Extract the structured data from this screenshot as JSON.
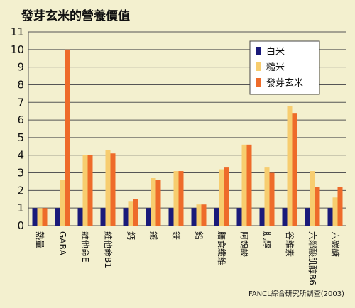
{
  "title": "發芽玄米的營養價值",
  "source": "FANCL綜合研究所調查(2003)",
  "colors": {
    "background": "#f3f0cf",
    "white_rice": "#1a1a7a",
    "brown_rice": "#f7cd6f",
    "germinated": "#ee6b2a",
    "grid": "#555555"
  },
  "chart_data": {
    "type": "bar",
    "title": "發芽玄米的營養價值",
    "xlabel": "",
    "ylabel": "",
    "ylim": [
      0,
      11
    ],
    "yticks": [
      0,
      1,
      2,
      3,
      4,
      5,
      6,
      7,
      8,
      9,
      10,
      11
    ],
    "grid": true,
    "legend_position": "top-right",
    "categories": [
      "熱量",
      "GABA",
      "維他命E",
      "維他命B1",
      "鈣",
      "鐵",
      "鎂",
      "鉛",
      "膳食纖維",
      "阿魏酸",
      "肌醇",
      "谷維素",
      "六鄰酸肌醇B6",
      "六碳醣"
    ],
    "series": [
      {
        "name": "白米",
        "values": [
          1,
          1,
          1,
          1,
          1,
          1,
          1,
          1,
          1,
          1,
          1,
          1,
          1,
          1
        ]
      },
      {
        "name": "糙米",
        "values": [
          1,
          2.6,
          4,
          4.3,
          1.4,
          2.7,
          3.1,
          1.2,
          3.2,
          4.6,
          3.3,
          6.8,
          3.1,
          1.6
        ]
      },
      {
        "name": "發芽玄米",
        "values": [
          1,
          10,
          4,
          4.1,
          1.5,
          2.6,
          3.1,
          1.2,
          3.3,
          4.6,
          3,
          6.4,
          2.2,
          2.2
        ]
      }
    ]
  }
}
